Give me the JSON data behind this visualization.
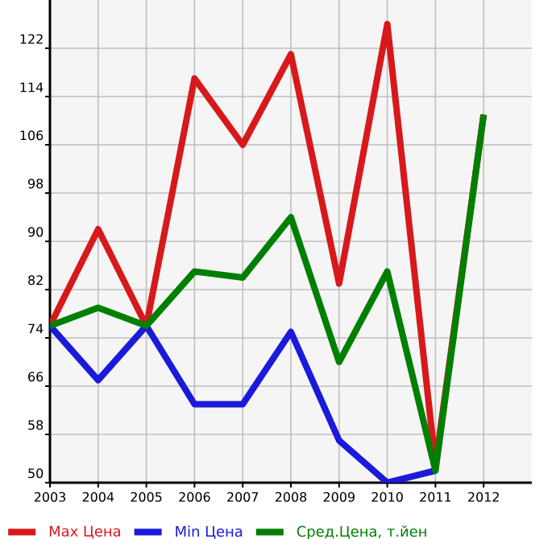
{
  "chart_data": {
    "type": "line",
    "x": [
      2003,
      2004,
      2005,
      2006,
      2007,
      2008,
      2009,
      2010,
      2011,
      2012
    ],
    "series": [
      {
        "name": "Max Цена",
        "color": "#d7191c",
        "values": [
          76,
          92,
          76,
          117,
          106,
          121,
          83,
          126,
          53,
          111
        ]
      },
      {
        "name": "Min Цена",
        "color": "#1a1adb",
        "values": [
          76,
          67,
          76,
          63,
          63,
          75,
          57,
          50,
          52,
          null
        ]
      },
      {
        "name": "Сред.Цена, т.йен",
        "color": "#007f00",
        "values": [
          76,
          79,
          76,
          85,
          84,
          94,
          70,
          85,
          52,
          111
        ]
      }
    ],
    "xlim": [
      2003,
      2013
    ],
    "xticks": [
      2003,
      2004,
      2005,
      2006,
      2007,
      2008,
      2009,
      2010,
      2011,
      2012
    ],
    "ylim": [
      50,
      130
    ],
    "yticks": [
      50,
      58,
      66,
      74,
      82,
      90,
      98,
      106,
      114,
      122
    ],
    "grid": true,
    "legend": "bottom",
    "marker": "none",
    "line_style": "solid"
  }
}
